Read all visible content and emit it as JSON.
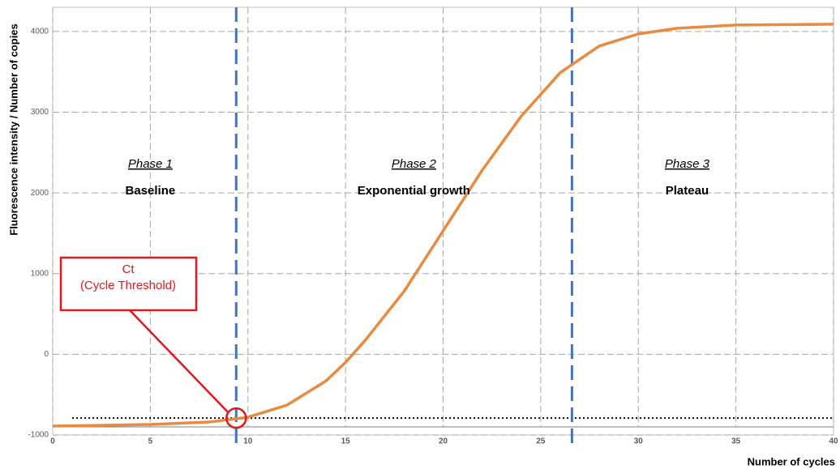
{
  "chart_data": {
    "type": "line",
    "y_label": "Fluorescence intensity / Number of copies",
    "x_label": "Number of cycles",
    "x": [
      0,
      5,
      8,
      10,
      12,
      14,
      15,
      16,
      18,
      20,
      22,
      24,
      26,
      28,
      30,
      32,
      35,
      40
    ],
    "series": [
      {
        "color": "#e98a3f",
        "values": [
          -890,
          -870,
          -840,
          -780,
          -630,
          -330,
          -100,
          170,
          780,
          1530,
          2280,
          2950,
          3490,
          3820,
          3970,
          4040,
          4080,
          4090
        ]
      }
    ],
    "xlim": [
      0,
      40
    ],
    "xticks": [
      0,
      5,
      10,
      15,
      20,
      25,
      30,
      35,
      40
    ],
    "ylim": [
      -1000,
      4300
    ],
    "yticks": [
      -1000,
      0,
      1000,
      2000,
      3000,
      4000
    ],
    "grid": true,
    "threshold": -790,
    "threshold_xlim": [
      1,
      40
    ],
    "phase_boundaries": [
      9.4,
      26.6
    ],
    "boundary_color": "#4a72b8",
    "ct_x": 9.4,
    "ct_label": [
      "Ct",
      "(Cycle Threshold)"
    ],
    "phases": [
      {
        "label": "Phase 1",
        "name": "Baseline",
        "x": 5
      },
      {
        "label": "Phase 2",
        "name": "Exponential growth",
        "x": 18.5
      },
      {
        "label": "Phase 3",
        "name": "Plateau",
        "x": 32.5
      }
    ]
  }
}
